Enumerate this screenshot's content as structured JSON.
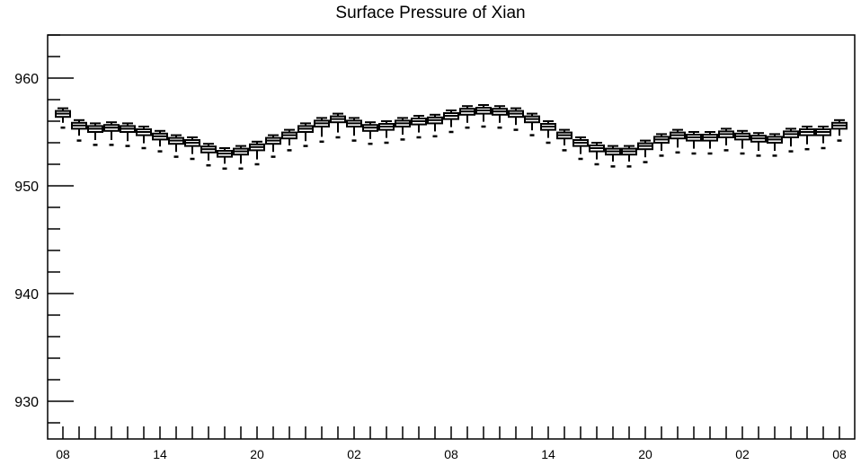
{
  "chart_data": {
    "type": "box",
    "title": "Surface Pressure of Xian",
    "xlabel": "",
    "ylabel": "",
    "ylim": [
      926.5,
      964
    ],
    "y_major_ticks": [
      930,
      940,
      950,
      960
    ],
    "y_minor_step": 2,
    "x_tick_labels": [
      "08",
      "14",
      "20",
      "02",
      "08",
      "14",
      "20",
      "02",
      "08"
    ],
    "x_tick_label_index_step": 6,
    "grid": false,
    "legend": "none",
    "box_color": "#000000",
    "medians": [
      956.7,
      955.6,
      955.3,
      955.4,
      955.3,
      955.0,
      954.6,
      954.2,
      954.0,
      953.4,
      953.0,
      953.2,
      953.6,
      954.2,
      954.7,
      955.3,
      955.8,
      956.2,
      955.8,
      955.4,
      955.5,
      955.8,
      956.0,
      956.1,
      956.5,
      956.9,
      957.0,
      956.9,
      956.7,
      956.2,
      955.5,
      954.7,
      954.0,
      953.5,
      953.2,
      953.2,
      953.7,
      954.3,
      954.7,
      954.5,
      954.5,
      954.8,
      954.6,
      954.4,
      954.3,
      954.8,
      955.0,
      955.0,
      955.6
    ],
    "mins": [
      955.4,
      954.2,
      953.8,
      953.8,
      953.7,
      953.5,
      953.2,
      952.7,
      952.5,
      951.9,
      951.6,
      951.6,
      952.0,
      952.7,
      953.3,
      953.7,
      954.1,
      954.5,
      954.2,
      953.9,
      954.0,
      954.3,
      954.5,
      954.6,
      955.0,
      955.4,
      955.5,
      955.4,
      955.2,
      954.7,
      954.0,
      953.3,
      952.5,
      952.0,
      951.8,
      951.8,
      952.2,
      952.8,
      953.1,
      953.0,
      953.0,
      953.3,
      953.0,
      952.8,
      952.8,
      953.2,
      953.4,
      953.5,
      954.2
    ],
    "maxs": [
      957.2,
      956.1,
      955.8,
      955.9,
      955.8,
      955.5,
      955.1,
      954.7,
      954.5,
      953.9,
      953.5,
      953.7,
      954.1,
      954.7,
      955.2,
      955.8,
      956.3,
      956.7,
      956.3,
      955.9,
      956.0,
      956.3,
      956.5,
      956.6,
      957.0,
      957.4,
      957.5,
      957.4,
      957.2,
      956.7,
      956.0,
      955.2,
      954.5,
      954.0,
      953.7,
      953.7,
      954.2,
      954.8,
      955.2,
      955.0,
      955.0,
      955.3,
      955.1,
      954.9,
      954.8,
      955.3,
      955.5,
      955.5,
      956.1
    ]
  }
}
